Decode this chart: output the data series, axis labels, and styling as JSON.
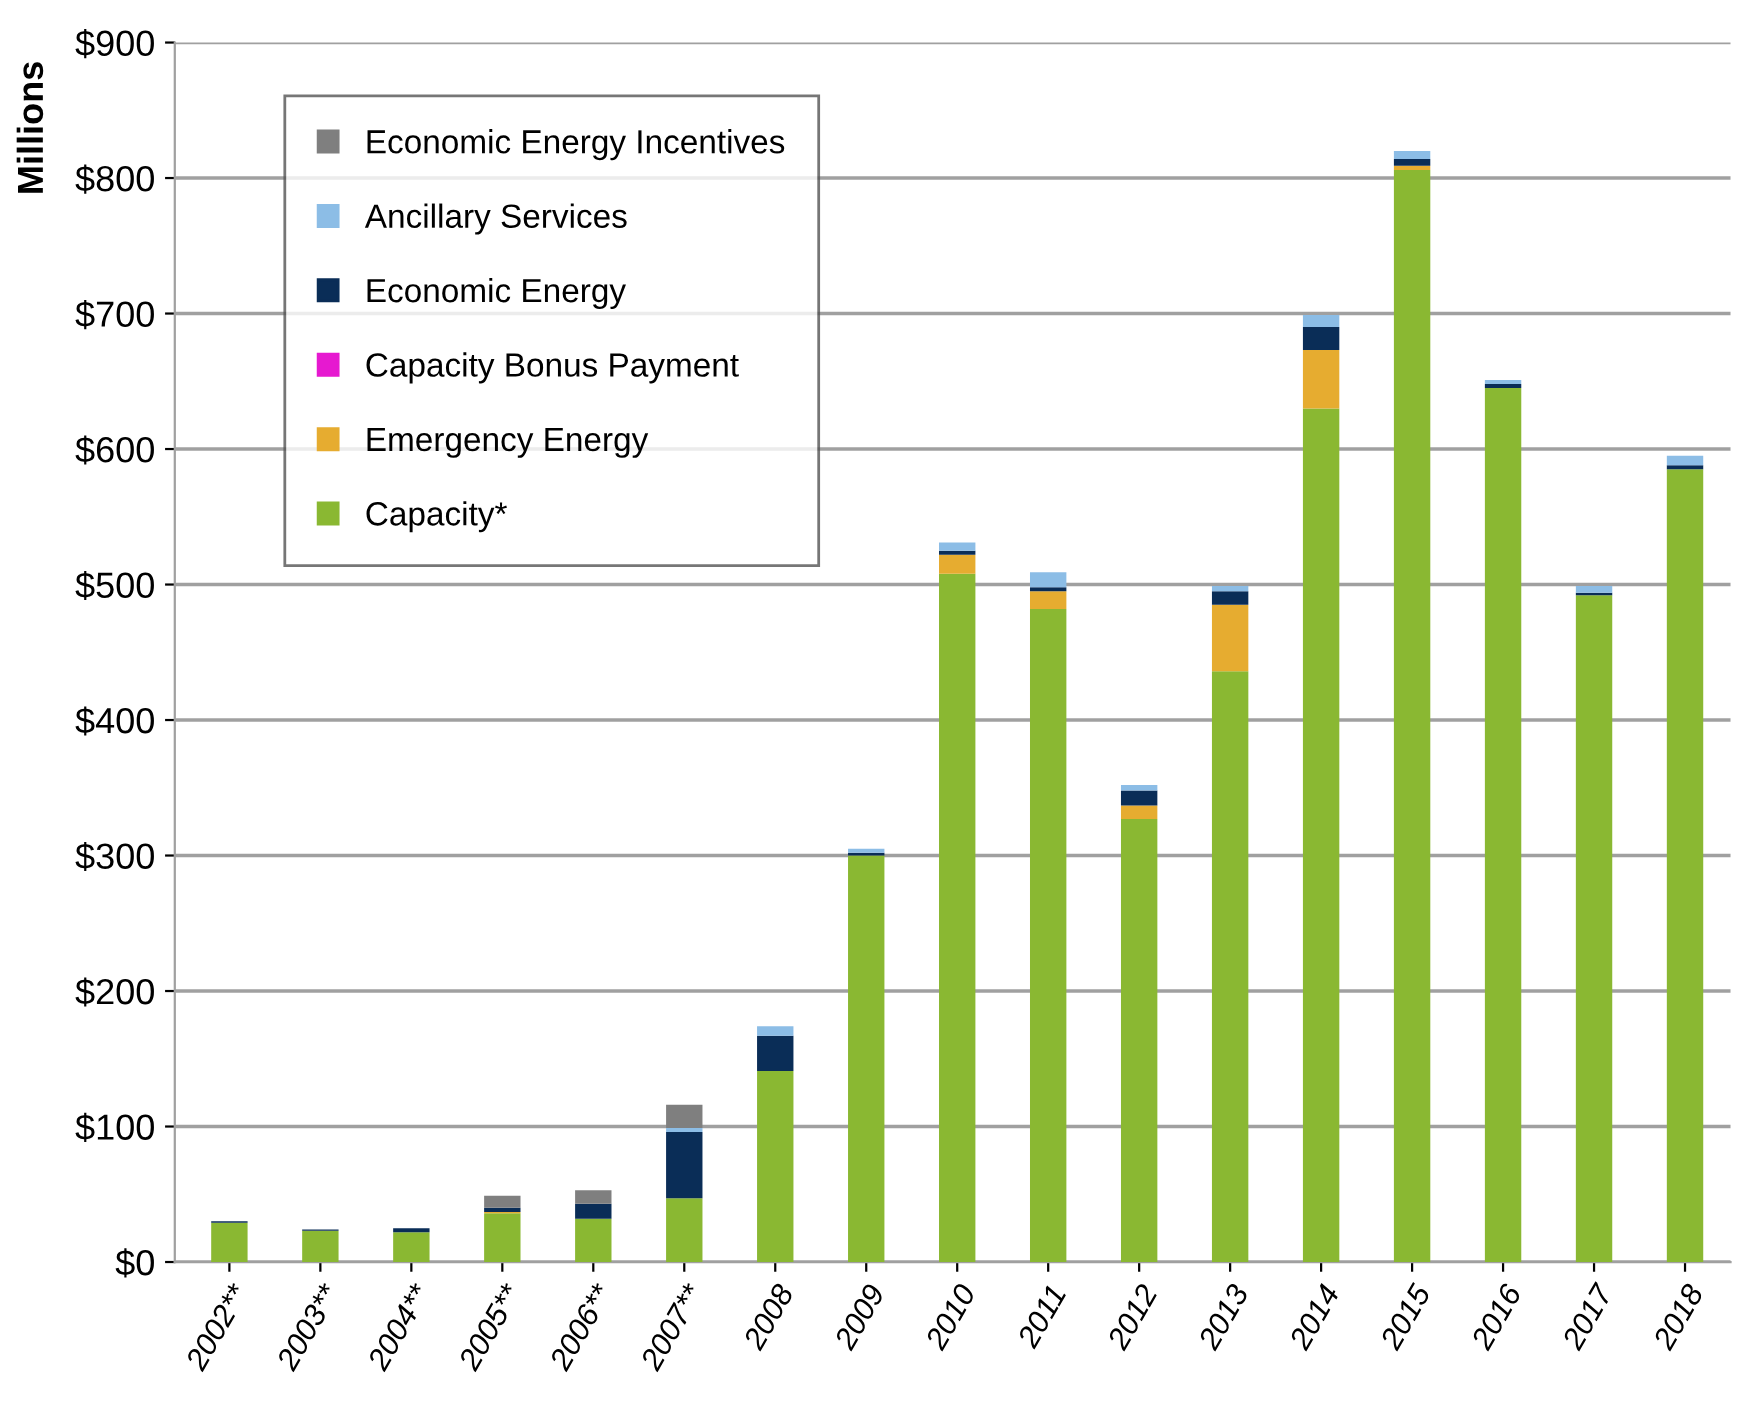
{
  "chart_data": {
    "type": "bar",
    "stacked": true,
    "ylabel": "Millions",
    "categories": [
      "2002**",
      "2003**",
      "2004**",
      "2005**",
      "2006**",
      "2007**",
      "2008",
      "2009",
      "2010",
      "2011",
      "2012",
      "2013",
      "2014",
      "2015",
      "2016",
      "2017",
      "2018"
    ],
    "series": [
      {
        "name": "Capacity*",
        "color": "#8ab832",
        "values": [
          29,
          23,
          22,
          36,
          32,
          47,
          141,
          300,
          508,
          482,
          327,
          436,
          630,
          806,
          645,
          492,
          585
        ]
      },
      {
        "name": "Emergency Energy",
        "color": "#e6ac30",
        "values": [
          0,
          0,
          0,
          1,
          0,
          0,
          0,
          0,
          14,
          13,
          10,
          49,
          43,
          3,
          0,
          0,
          0
        ]
      },
      {
        "name": "Capacity Bonus Payment",
        "color": "#e619d0",
        "values": [
          0,
          0,
          0,
          0,
          0,
          0,
          0,
          0,
          0,
          0,
          0,
          0,
          0,
          0,
          0,
          0,
          0
        ]
      },
      {
        "name": "Economic Energy",
        "color": "#0a2d57",
        "values": [
          1,
          1,
          3,
          3,
          11,
          49,
          26,
          2,
          3,
          3,
          11,
          10,
          17,
          5,
          3,
          2,
          3
        ]
      },
      {
        "name": "Ancillary Services",
        "color": "#8cbde6",
        "values": [
          0,
          0,
          0,
          0,
          0,
          3,
          7,
          3,
          6,
          11,
          4,
          4,
          9,
          6,
          3,
          5,
          7
        ]
      },
      {
        "name": "Economic Energy Incentives",
        "color": "#7f7f7f",
        "values": [
          0,
          0,
          0,
          9,
          10,
          17,
          0,
          0,
          0,
          0,
          0,
          0,
          0,
          0,
          0,
          0,
          0
        ]
      }
    ],
    "ylim": [
      0,
      900
    ],
    "yticks": [
      {
        "value": 0,
        "label": "$0"
      },
      {
        "value": 100,
        "label": "$100"
      },
      {
        "value": 200,
        "label": "$200"
      },
      {
        "value": 300,
        "label": "$300"
      },
      {
        "value": 400,
        "label": "$400"
      },
      {
        "value": 500,
        "label": "$500"
      },
      {
        "value": 600,
        "label": "$600"
      },
      {
        "value": 700,
        "label": "$700"
      },
      {
        "value": 800,
        "label": "$800"
      },
      {
        "value": 900,
        "label": "$900"
      }
    ],
    "grid": "y",
    "legend": "top left"
  }
}
